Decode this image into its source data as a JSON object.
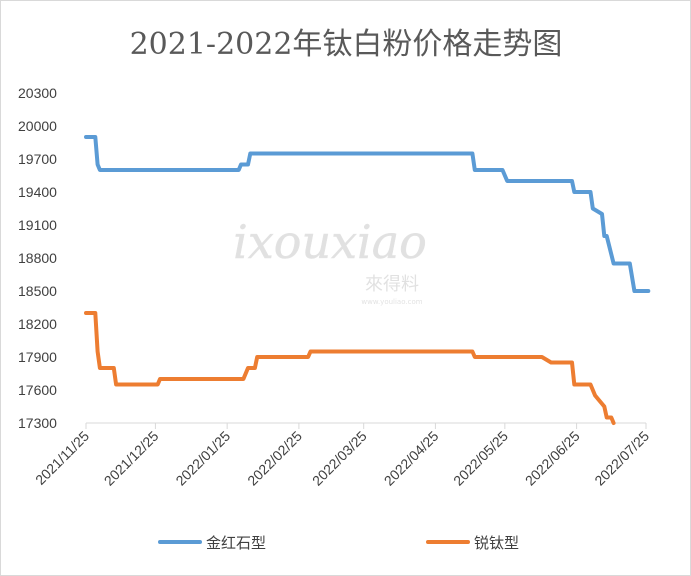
{
  "chart_data": {
    "type": "line",
    "title": "2021-2022年钛白粉价格走势图",
    "xlabel": "",
    "ylabel": "",
    "ylim": [
      17300,
      20300
    ],
    "yticks": [
      17300,
      17600,
      17900,
      18200,
      18500,
      18800,
      19100,
      19400,
      19700,
      20000,
      20300
    ],
    "xlim": [
      "2021-11-25",
      "2022-07-25"
    ],
    "xticks": [
      "2021/11/25",
      "2021/12/25",
      "2022/01/25",
      "2022/02/25",
      "2022/03/25",
      "2022/04/25",
      "2022/05/25",
      "2022/06/25",
      "2022/07/25"
    ],
    "xtick_dates": [
      "2021-11-25",
      "2021-12-25",
      "2022-01-25",
      "2022-02-25",
      "2022-03-25",
      "2022-04-25",
      "2022-05-25",
      "2022-06-25",
      "2022-07-25"
    ],
    "grid": false,
    "legend_position": "bottom",
    "series": [
      {
        "name": "金红石型",
        "color": "#5b9bd5",
        "points": [
          [
            "2021-11-25",
            19900
          ],
          [
            "2021-11-29",
            19900
          ],
          [
            "2021-11-30",
            19650
          ],
          [
            "2021-12-01",
            19600
          ],
          [
            "2022-01-30",
            19600
          ],
          [
            "2022-01-31",
            19650
          ],
          [
            "2022-02-03",
            19650
          ],
          [
            "2022-02-04",
            19750
          ],
          [
            "2022-05-11",
            19750
          ],
          [
            "2022-05-12",
            19600
          ],
          [
            "2022-05-24",
            19600
          ],
          [
            "2022-05-26",
            19500
          ],
          [
            "2022-06-23",
            19500
          ],
          [
            "2022-06-24",
            19400
          ],
          [
            "2022-07-01",
            19400
          ],
          [
            "2022-07-02",
            19250
          ],
          [
            "2022-07-06",
            19200
          ],
          [
            "2022-07-07",
            19000
          ],
          [
            "2022-07-08",
            19000
          ],
          [
            "2022-07-11",
            18750
          ],
          [
            "2022-07-18",
            18750
          ],
          [
            "2022-07-20",
            18500
          ],
          [
            "2022-07-26",
            18500
          ]
        ]
      },
      {
        "name": "锐钛型",
        "color": "#ed7d31",
        "points": [
          [
            "2021-11-25",
            18300
          ],
          [
            "2021-11-29",
            18300
          ],
          [
            "2021-11-30",
            17950
          ],
          [
            "2021-12-01",
            17800
          ],
          [
            "2021-12-07",
            17800
          ],
          [
            "2021-12-08",
            17650
          ],
          [
            "2021-12-26",
            17650
          ],
          [
            "2021-12-27",
            17700
          ],
          [
            "2022-02-01",
            17700
          ],
          [
            "2022-02-03",
            17800
          ],
          [
            "2022-02-06",
            17800
          ],
          [
            "2022-02-07",
            17900
          ],
          [
            "2022-03-01",
            17900
          ],
          [
            "2022-03-02",
            17950
          ],
          [
            "2022-05-11",
            17950
          ],
          [
            "2022-05-12",
            17900
          ],
          [
            "2022-06-10",
            17900
          ],
          [
            "2022-06-14",
            17850
          ],
          [
            "2022-06-23",
            17850
          ],
          [
            "2022-06-24",
            17650
          ],
          [
            "2022-07-01",
            17650
          ],
          [
            "2022-07-03",
            17550
          ],
          [
            "2022-07-05",
            17500
          ],
          [
            "2022-07-07",
            17450
          ],
          [
            "2022-07-08",
            17350
          ],
          [
            "2022-07-10",
            17350
          ],
          [
            "2022-07-11",
            17300
          ]
        ]
      }
    ],
    "watermark": {
      "main": "ixouxiao",
      "cn": "來得料",
      "url": "www.youliao.com"
    }
  }
}
